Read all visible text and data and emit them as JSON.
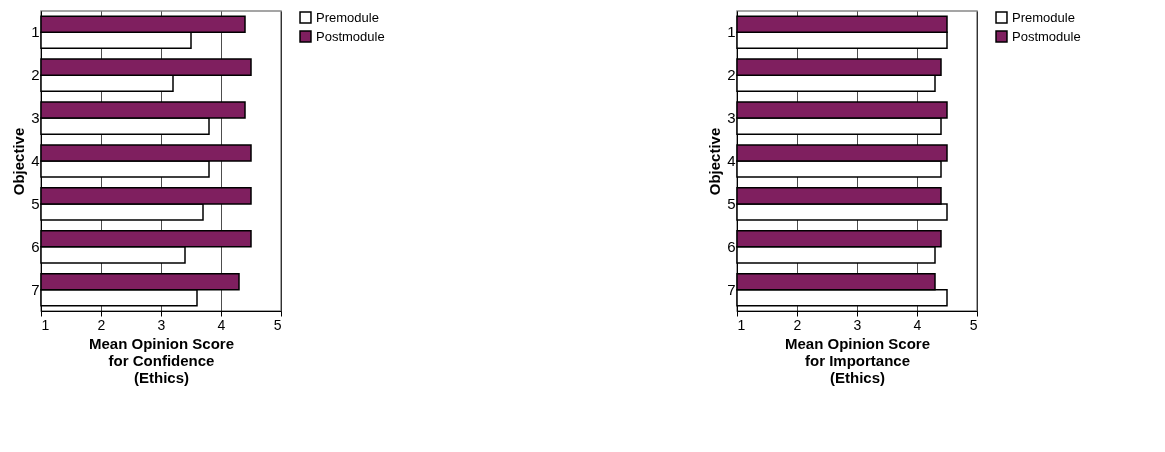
{
  "chart_data": [
    {
      "type": "bar",
      "orientation": "horizontal",
      "categories": [
        "1",
        "2",
        "3",
        "4",
        "5",
        "6",
        "7"
      ],
      "ylabel": "Objective",
      "xlabel": "Mean Opinion Score\nfor Confidence\n(Ethics)",
      "xlim": [
        1,
        5
      ],
      "xticks": [
        1,
        2,
        3,
        4,
        5
      ],
      "grid": "x",
      "legend": "right",
      "series": [
        {
          "name": "Premodule",
          "color": "#ffffff",
          "values": [
            3.5,
            3.2,
            3.8,
            3.8,
            3.7,
            3.4,
            3.6
          ]
        },
        {
          "name": "Postmodule",
          "color": "#7f1f5f",
          "values": [
            4.4,
            4.5,
            4.4,
            4.5,
            4.5,
            4.5,
            4.3
          ]
        }
      ]
    },
    {
      "type": "bar",
      "orientation": "horizontal",
      "categories": [
        "1",
        "2",
        "3",
        "4",
        "5",
        "6",
        "7"
      ],
      "ylabel": "Objective",
      "xlabel": "Mean Opinion Score\nfor Importance\n(Ethics)",
      "xlim": [
        1,
        5
      ],
      "xticks": [
        1,
        2,
        3,
        4,
        5
      ],
      "grid": "x",
      "legend": "right",
      "series": [
        {
          "name": "Premodule",
          "color": "#ffffff",
          "values": [
            4.5,
            4.3,
            4.4,
            4.4,
            4.5,
            4.3,
            4.5
          ]
        },
        {
          "name": "Postmodule",
          "color": "#7f1f5f",
          "values": [
            4.5,
            4.4,
            4.5,
            4.5,
            4.4,
            4.4,
            4.3
          ]
        }
      ]
    }
  ]
}
